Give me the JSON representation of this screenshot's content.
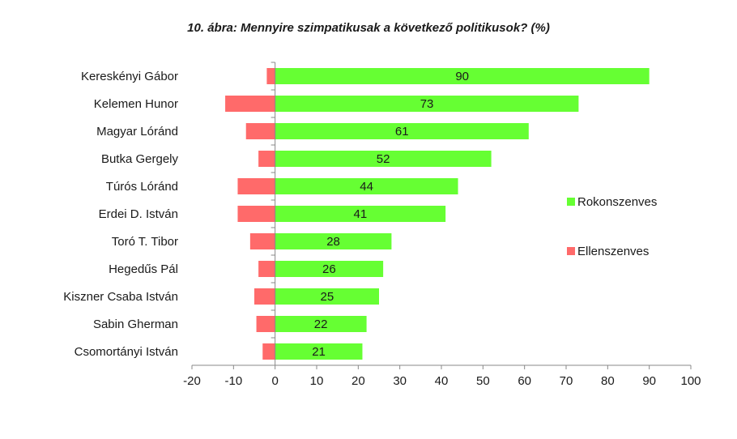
{
  "chart_data": {
    "type": "bar",
    "orientation": "horizontal",
    "stacked": true,
    "title": "10. ábra: Mennyire szimpatikusak a következő politikusok? (%)",
    "categories": [
      "Kereskényi Gábor",
      "Kelemen Hunor",
      "Magyar Lóránd",
      "Butka Gergely",
      "Túrós Lóránd",
      "Erdei D. István",
      "Toró T. Tibor",
      "Hegedűs Pál",
      "Kiszner Csaba István",
      "Sabin Gherman",
      "Csomortányi István"
    ],
    "series": [
      {
        "name": "Rokonszenves",
        "color": "#66ff33",
        "values": [
          90,
          73,
          61,
          52,
          44,
          41,
          28,
          26,
          25,
          22,
          21
        ],
        "show_labels": true
      },
      {
        "name": "Ellenszenves",
        "color": "#ff6a6a",
        "values": [
          -2,
          -12,
          -7,
          -4,
          -9,
          -9,
          -6,
          -4,
          -5,
          -4.5,
          -3
        ],
        "show_labels": false
      }
    ],
    "xlim": [
      -20,
      100
    ],
    "xticks": [
      "-20",
      "-10",
      "0",
      "10",
      "20",
      "30",
      "40",
      "50",
      "60",
      "70",
      "80",
      "90",
      "100"
    ],
    "grid": false,
    "legend_position": "right"
  }
}
